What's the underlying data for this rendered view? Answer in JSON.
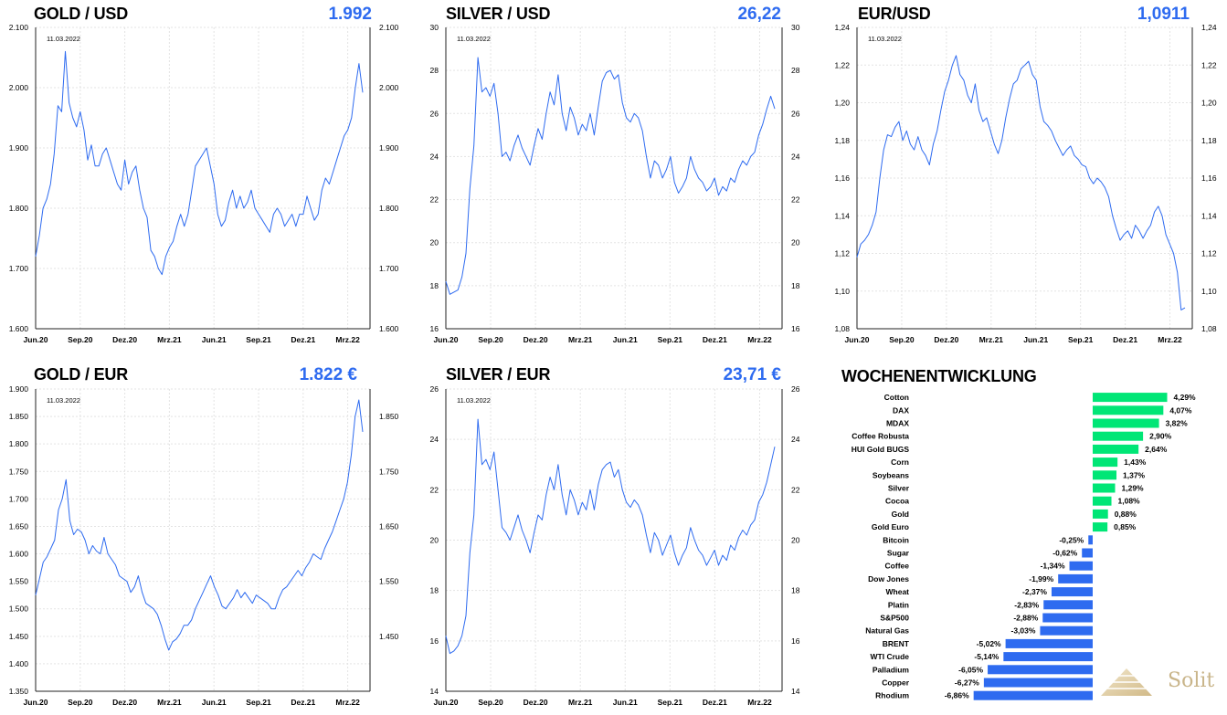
{
  "charts": [
    {
      "id": "gold-usd",
      "title": "GOLD / USD",
      "value": "1.992",
      "date_note": "11.03.2022",
      "type": "line",
      "x_ticks": [
        "Jun.20",
        "Sep.20",
        "Dez.20",
        "Mrz.21",
        "Jun.21",
        "Sep.21",
        "Dez.21",
        "Mrz.22"
      ],
      "y_ticks_left": [
        "1.600",
        "1.700",
        "1.800",
        "1.900",
        "2.000",
        "2.100"
      ],
      "y_ticks_right": [
        "1.600",
        "1.700",
        "1.800",
        "1.900",
        "2.000",
        "2.100"
      ],
      "ylim": [
        1600,
        2100
      ],
      "right_ylim": [
        1600,
        2100
      ],
      "series": [
        {
          "values": [
            1720,
            1755,
            1800,
            1815,
            1840,
            1890,
            1970,
            1960,
            2060,
            1975,
            1950,
            1935,
            1960,
            1930,
            1880,
            1905,
            1870,
            1870,
            1890,
            1900,
            1880,
            1860,
            1840,
            1830,
            1880,
            1840,
            1860,
            1870,
            1830,
            1800,
            1785,
            1730,
            1720,
            1700,
            1690,
            1720,
            1735,
            1745,
            1770,
            1790,
            1770,
            1790,
            1830,
            1870,
            1880,
            1890,
            1900,
            1870,
            1840,
            1790,
            1770,
            1780,
            1810,
            1830,
            1800,
            1820,
            1800,
            1810,
            1830,
            1800,
            1790,
            1780,
            1770,
            1760,
            1790,
            1800,
            1790,
            1770,
            1780,
            1790,
            1770,
            1790,
            1790,
            1820,
            1800,
            1780,
            1790,
            1830,
            1850,
            1840,
            1860,
            1880,
            1900,
            1920,
            1930,
            1950,
            2000,
            2040,
            1992
          ]
        }
      ]
    },
    {
      "id": "silver-usd",
      "title": "SILVER / USD",
      "value": "26,22",
      "date_note": "11.03.2022",
      "type": "line",
      "x_ticks": [
        "Jun.20",
        "Sep.20",
        "Dez.20",
        "Mrz.21",
        "Jun.21",
        "Sep.21",
        "Dez.21",
        "Mrz.22"
      ],
      "y_ticks_left": [
        "16",
        "18",
        "20",
        "22",
        "24",
        "26",
        "28",
        "30"
      ],
      "y_ticks_right": [
        "16",
        "18",
        "20",
        "22",
        "24",
        "26",
        "28",
        "30"
      ],
      "ylim": [
        16,
        30
      ],
      "right_ylim": [
        16,
        30
      ],
      "series": [
        {
          "values": [
            18.2,
            17.6,
            17.7,
            17.8,
            18.4,
            19.5,
            22.5,
            24.5,
            28.6,
            27.0,
            27.2,
            26.8,
            27.4,
            26.0,
            24.0,
            24.2,
            23.8,
            24.5,
            25.0,
            24.4,
            24.0,
            23.6,
            24.5,
            25.3,
            24.8,
            26.0,
            27.0,
            26.4,
            27.8,
            26.0,
            25.2,
            26.3,
            25.8,
            25.0,
            25.5,
            25.2,
            26.0,
            25.0,
            26.3,
            27.5,
            27.9,
            28.0,
            27.6,
            27.8,
            26.5,
            25.8,
            25.6,
            26.0,
            25.8,
            25.2,
            24.0,
            23.0,
            23.8,
            23.6,
            23.0,
            23.4,
            24.0,
            22.8,
            22.3,
            22.6,
            23.0,
            24.0,
            23.4,
            23.0,
            22.8,
            22.4,
            22.6,
            23.0,
            22.2,
            22.6,
            22.4,
            23.0,
            22.8,
            23.4,
            23.8,
            23.6,
            24.0,
            24.2,
            25.0,
            25.5,
            26.2,
            26.8,
            26.22
          ]
        }
      ]
    },
    {
      "id": "eur-usd",
      "title": "EUR/USD",
      "value": "1,0911",
      "date_note": "11.03.2022",
      "type": "line",
      "x_ticks": [
        "Jun.20",
        "Sep.20",
        "Dez.20",
        "Mrz.21",
        "Jun.21",
        "Sep.21",
        "Dez.21",
        "Mrz.22"
      ],
      "y_ticks_left": [
        "1,08",
        "1,10",
        "1,12",
        "1,14",
        "1,16",
        "1,18",
        "1,20",
        "1,22",
        "1,24"
      ],
      "y_ticks_right": [
        "1,08",
        "1,10",
        "1,12",
        "1,14",
        "1,16",
        "1,18",
        "1,20",
        "1,22",
        "1,24"
      ],
      "ylim": [
        1.08,
        1.24
      ],
      "right_ylim": [
        1.08,
        1.24
      ],
      "series": [
        {
          "values": [
            1.118,
            1.125,
            1.127,
            1.13,
            1.135,
            1.142,
            1.16,
            1.175,
            1.183,
            1.182,
            1.187,
            1.19,
            1.18,
            1.185,
            1.178,
            1.175,
            1.182,
            1.175,
            1.172,
            1.167,
            1.178,
            1.185,
            1.196,
            1.206,
            1.212,
            1.22,
            1.225,
            1.215,
            1.212,
            1.204,
            1.2,
            1.21,
            1.196,
            1.19,
            1.192,
            1.185,
            1.178,
            1.173,
            1.18,
            1.192,
            1.202,
            1.21,
            1.212,
            1.218,
            1.22,
            1.222,
            1.215,
            1.212,
            1.198,
            1.19,
            1.188,
            1.185,
            1.18,
            1.176,
            1.172,
            1.175,
            1.177,
            1.172,
            1.17,
            1.167,
            1.166,
            1.16,
            1.157,
            1.16,
            1.158,
            1.155,
            1.15,
            1.14,
            1.133,
            1.127,
            1.13,
            1.132,
            1.128,
            1.135,
            1.132,
            1.128,
            1.132,
            1.135,
            1.142,
            1.145,
            1.14,
            1.13,
            1.125,
            1.12,
            1.11,
            1.09,
            1.0911
          ]
        }
      ]
    },
    {
      "id": "gold-eur",
      "title": "GOLD / EUR",
      "value": "1.822 €",
      "date_note": "11.03.2022",
      "type": "line",
      "x_ticks": [
        "Jun.20",
        "Sep.20",
        "Dez.20",
        "Mrz.21",
        "Jun.21",
        "Sep.21",
        "Dez.21",
        "Mrz.22"
      ],
      "y_ticks_left": [
        "1.350",
        "1.400",
        "1.450",
        "1.500",
        "1.550",
        "1.600",
        "1.650",
        "1.700",
        "1.750",
        "1.800",
        "1.850",
        "1.900"
      ],
      "y_ticks_right": [
        "1.450",
        "1.550",
        "1.650",
        "1.750",
        "1.850"
      ],
      "ylim": [
        1350,
        1900
      ],
      "right_ylim": [
        1350,
        1900
      ],
      "series": [
        {
          "values": [
            1525,
            1555,
            1585,
            1595,
            1610,
            1625,
            1680,
            1700,
            1735,
            1660,
            1635,
            1645,
            1640,
            1625,
            1600,
            1615,
            1605,
            1600,
            1630,
            1600,
            1590,
            1580,
            1560,
            1555,
            1550,
            1530,
            1540,
            1560,
            1530,
            1510,
            1505,
            1500,
            1490,
            1470,
            1445,
            1425,
            1440,
            1445,
            1455,
            1470,
            1470,
            1480,
            1500,
            1515,
            1530,
            1545,
            1560,
            1540,
            1525,
            1505,
            1500,
            1510,
            1520,
            1535,
            1520,
            1530,
            1520,
            1510,
            1525,
            1520,
            1515,
            1510,
            1500,
            1500,
            1520,
            1535,
            1540,
            1550,
            1560,
            1570,
            1560,
            1575,
            1585,
            1600,
            1595,
            1590,
            1610,
            1625,
            1640,
            1660,
            1680,
            1700,
            1730,
            1780,
            1850,
            1880,
            1822
          ]
        }
      ]
    },
    {
      "id": "silver-eur",
      "title": "SILVER / EUR",
      "value": "23,71 €",
      "date_note": "11.03.2022",
      "type": "line",
      "x_ticks": [
        "Jun.20",
        "Sep.20",
        "Dez.20",
        "Mrz.21",
        "Jun.21",
        "Sep.21",
        "Dez.21",
        "Mrz.22"
      ],
      "y_ticks_left": [
        "14",
        "16",
        "18",
        "20",
        "22",
        "24",
        "26"
      ],
      "y_ticks_right": [
        "14",
        "16",
        "18",
        "20",
        "22",
        "24",
        "26"
      ],
      "ylim": [
        14,
        26
      ],
      "right_ylim": [
        14,
        26
      ],
      "series": [
        {
          "values": [
            16.2,
            15.5,
            15.6,
            15.8,
            16.2,
            17.0,
            19.5,
            21.0,
            24.8,
            23.0,
            23.2,
            22.8,
            23.5,
            22.0,
            20.5,
            20.3,
            20.0,
            20.5,
            21.0,
            20.4,
            20.0,
            19.5,
            20.3,
            21.0,
            20.8,
            21.8,
            22.5,
            22.0,
            23.0,
            21.8,
            21.0,
            22.0,
            21.6,
            21.0,
            21.5,
            21.2,
            22.0,
            21.2,
            22.2,
            22.8,
            23.0,
            23.1,
            22.5,
            22.8,
            22.0,
            21.5,
            21.3,
            21.6,
            21.4,
            21.0,
            20.2,
            19.5,
            20.3,
            20.0,
            19.4,
            19.8,
            20.2,
            19.5,
            19.0,
            19.4,
            19.7,
            20.5,
            20.0,
            19.6,
            19.4,
            19.0,
            19.3,
            19.6,
            19.0,
            19.4,
            19.2,
            19.8,
            19.6,
            20.1,
            20.4,
            20.2,
            20.6,
            20.8,
            21.5,
            21.8,
            22.3,
            23.0,
            23.71
          ]
        }
      ]
    },
    {
      "id": "wochenentwicklung",
      "title": "WOCHENENTWICKLUNG",
      "type": "bar",
      "categories": [
        "Cotton",
        "DAX",
        "MDAX",
        "Coffee Robusta",
        "HUI Gold BUGS",
        "Corn",
        "Soybeans",
        "Silver",
        "Cocoa",
        "Gold",
        "Gold Euro",
        "Bitcoin",
        "Sugar",
        "Coffee",
        "Dow Jones",
        "Wheat",
        "Platin",
        "S&P500",
        "Natural Gas",
        "BRENT",
        "WTI Crude",
        "Palladium",
        "Copper",
        "Rhodium"
      ],
      "values": [
        4.29,
        4.07,
        3.82,
        2.9,
        2.64,
        1.43,
        1.37,
        1.29,
        1.08,
        0.88,
        0.85,
        -0.25,
        -0.62,
        -1.34,
        -1.99,
        -2.37,
        -2.83,
        -2.88,
        -3.03,
        -5.02,
        -5.14,
        -6.05,
        -6.27,
        -6.86
      ],
      "labels": [
        "4,29%",
        "4,07%",
        "3,82%",
        "2,90%",
        "2,64%",
        "1,43%",
        "1,37%",
        "1,29%",
        "1,08%",
        "0,88%",
        "0,85%",
        "-0,25%",
        "-0,62%",
        "-1,34%",
        "-1,99%",
        "-2,37%",
        "-2,83%",
        "-2,88%",
        "-3,03%",
        "-5,02%",
        "-5,14%",
        "-6,05%",
        "-6,27%",
        "-6,86%"
      ],
      "positive_color": "#00e676",
      "negative_color": "#2e6bf0"
    }
  ],
  "brand": {
    "name": "Solit",
    "icon": "pyramid-logo-icon"
  },
  "colors": {
    "line": "#2e6bf0",
    "value_text": "#2e6bf0"
  }
}
